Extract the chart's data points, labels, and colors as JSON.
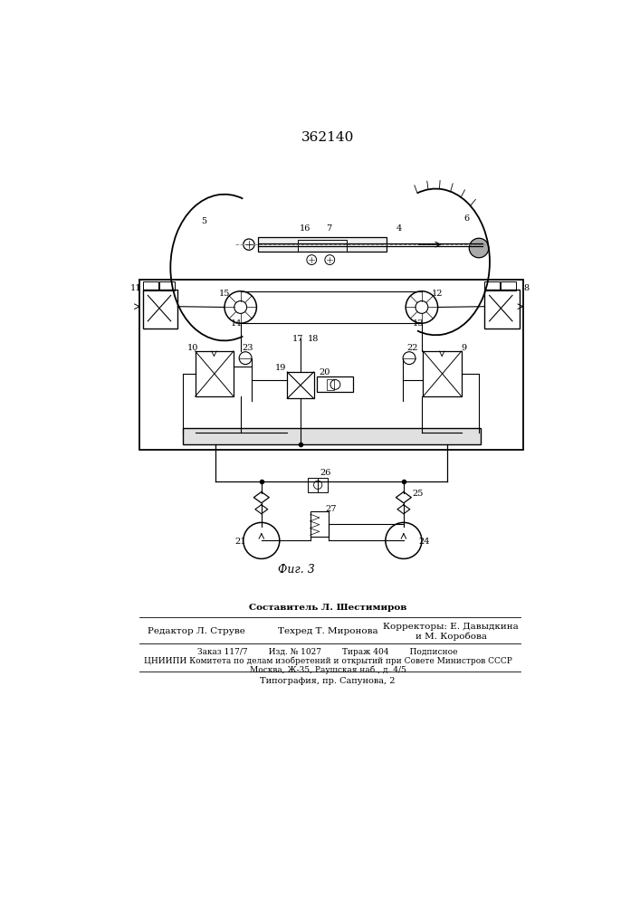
{
  "patent_number": "362140",
  "fig_label": "Фиг. 3",
  "bg_color": "#ffffff",
  "line_color": "#000000",
  "editor_line": "Редактор Л. Струве",
  "composer_line": "Составитель Л. Шестимиров",
  "techred_line": "Техред Т. Миронова",
  "correctors_line": "Корректоры: Е. Давыдкина",
  "correctors_line2": "и М. Коробова",
  "order_line": "Заказ 117/7        Изд. № 1027        Тираж 404        Подписное",
  "org_line": "ЦНИИПИ Комитета по делам изобретений и открытий при Совете Министров СССР",
  "address_line": "Москва, Ж-35, Раушская наб., д. 4/5",
  "print_line": "Типография, пр. Сапунова, 2"
}
